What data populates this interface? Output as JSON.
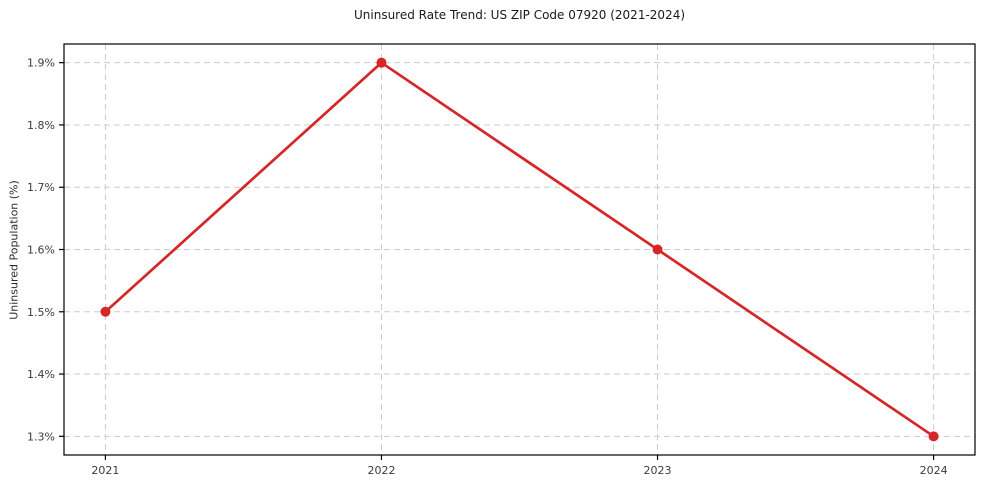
{
  "chart_data": {
    "type": "line",
    "title": "Uninsured Rate Trend: US ZIP Code 07920 (2021-2024)",
    "xlabel": "",
    "ylabel": "Uninsured Population (%)",
    "x": [
      2021,
      2022,
      2023,
      2024
    ],
    "series": [
      {
        "name": "Uninsured rate",
        "values": [
          1.5,
          1.9,
          1.6,
          1.3
        ]
      }
    ],
    "xtick_labels": [
      "2021",
      "2022",
      "2023",
      "2024"
    ],
    "yticks": [
      1.3,
      1.4,
      1.5,
      1.6,
      1.7,
      1.8,
      1.9
    ],
    "ytick_labels": [
      "1.3%",
      "1.4%",
      "1.5%",
      "1.6%",
      "1.7%",
      "1.8%",
      "1.9%"
    ],
    "xlim": [
      2020.85,
      2024.15
    ],
    "ylim": [
      1.27,
      1.93
    ],
    "grid": true,
    "legend": "none",
    "line_color": "#d62728",
    "marker": "circle",
    "grid_color": "#cccccc",
    "axis_color": "#000000",
    "background_color": "#ffffff"
  }
}
